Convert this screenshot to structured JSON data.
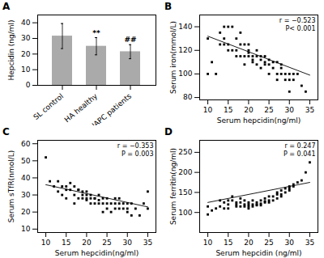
{
  "chart_data": [
    {
      "type": "bar",
      "title": "A",
      "categories": [
        "SL control",
        "HA healthy",
        "HAPC patients"
      ],
      "values": [
        31.5,
        25.0,
        21.5
      ],
      "errors": [
        8.0,
        5.5,
        4.5
      ],
      "color": "#aaaaaa",
      "ylabel": "Hepcidin (ng/ml)",
      "ylim": [
        0,
        45
      ],
      "yticks": [
        0,
        10,
        20,
        30,
        40
      ],
      "annotations": [
        null,
        "**",
        "##"
      ],
      "grid": false
    },
    {
      "type": "scatter",
      "title": "B",
      "xlabel": "Serum hepcidin(ng/ml)",
      "ylabel": "Serum iron(mmol/L)",
      "xlim": [
        8,
        37
      ],
      "ylim": [
        78,
        150
      ],
      "xticks": [
        10,
        15,
        20,
        25,
        30,
        35
      ],
      "yticks": [
        80,
        100,
        120,
        140
      ],
      "annotations": [
        "r = −0.523",
        "P< 0.001"
      ],
      "color": "#000000",
      "marker": "square",
      "fit": {
        "type": "line",
        "x": [
          10,
          35
        ],
        "values": [
          132,
          99
        ],
        "color": "#000000"
      },
      "x": [
        10,
        10,
        11,
        12,
        13,
        13,
        14,
        14,
        14,
        15,
        15,
        15,
        16,
        16,
        17,
        17,
        17,
        18,
        18,
        18,
        19,
        19,
        19,
        20,
        20,
        20,
        20,
        21,
        21,
        21,
        22,
        22,
        22,
        23,
        23,
        23,
        24,
        24,
        24,
        25,
        25,
        25,
        26,
        26,
        27,
        27,
        27,
        28,
        28,
        28,
        29,
        29,
        30,
        30,
        30,
        31,
        31,
        32,
        33,
        34
      ],
      "values": [
        130,
        100,
        110,
        100,
        135,
        125,
        140,
        130,
        125,
        125,
        120,
        140,
        140,
        120,
        130,
        120,
        115,
        135,
        125,
        115,
        125,
        115,
        108,
        115,
        118,
        125,
        120,
        115,
        110,
        112,
        115,
        108,
        120,
        112,
        115,
        105,
        108,
        115,
        110,
        112,
        108,
        100,
        110,
        105,
        110,
        100,
        95,
        105,
        108,
        100,
        95,
        100,
        100,
        95,
        85,
        100,
        95,
        100,
        90,
        85
      ],
      "grid": false
    },
    {
      "type": "scatter",
      "title": "C",
      "xlabel": "Serum hepcidin(ng/ml)",
      "ylabel": "Serum sTfR(nmol/L)",
      "xlim": [
        8,
        37
      ],
      "ylim": [
        8,
        62
      ],
      "xticks": [
        10,
        15,
        20,
        25,
        30,
        35
      ],
      "yticks": [
        10,
        20,
        30,
        40,
        50,
        60
      ],
      "annotations": [
        "r = −0.353",
        "P = 0.003"
      ],
      "color": "#000000",
      "marker": "square",
      "fit": {
        "type": "line",
        "x": [
          10,
          35
        ],
        "values": [
          36,
          23
        ],
        "color": "#000000"
      },
      "x": [
        10,
        11,
        12,
        13,
        13,
        14,
        14,
        15,
        15,
        15,
        16,
        16,
        17,
        17,
        17,
        18,
        18,
        18,
        19,
        19,
        19,
        20,
        20,
        20,
        20,
        21,
        21,
        21,
        22,
        22,
        22,
        23,
        23,
        23,
        24,
        24,
        24,
        25,
        25,
        25,
        26,
        26,
        27,
        27,
        27,
        28,
        28,
        28,
        29,
        29,
        30,
        30,
        30,
        31,
        31,
        32,
        33,
        34,
        35,
        35
      ],
      "values": [
        52,
        38,
        35,
        38,
        32,
        35,
        30,
        33,
        35,
        28,
        37,
        33,
        35,
        30,
        25,
        33,
        28,
        33,
        30,
        28,
        32,
        28,
        32,
        27,
        30,
        28,
        25,
        30,
        28,
        25,
        28,
        25,
        30,
        27,
        28,
        25,
        20,
        25,
        28,
        22,
        25,
        20,
        25,
        22,
        28,
        25,
        22,
        28,
        22,
        25,
        22,
        25,
        20,
        18,
        25,
        22,
        18,
        25,
        32,
        22
      ],
      "grid": false
    },
    {
      "type": "scatter",
      "title": "D",
      "xlabel": "Serum hepcidin (ng/ml)",
      "ylabel": "Serum ferritin(ng/ml)",
      "xlim": [
        8,
        37
      ],
      "ylim": [
        50,
        280
      ],
      "xticks": [
        10,
        15,
        20,
        25,
        30,
        35
      ],
      "yticks": [
        100,
        150,
        200,
        250
      ],
      "annotations": [
        "r = 0.247",
        "P = 0.041"
      ],
      "color": "#000000",
      "marker": "square",
      "fit": {
        "type": "line",
        "x": [
          10,
          35
        ],
        "values": [
          125,
          175
        ],
        "color": "#000000"
      },
      "x": [
        10,
        10,
        11,
        12,
        13,
        13,
        14,
        14,
        15,
        15,
        15,
        16,
        16,
        17,
        17,
        17,
        18,
        18,
        18,
        19,
        19,
        19,
        20,
        20,
        20,
        20,
        21,
        21,
        21,
        22,
        22,
        22,
        23,
        23,
        23,
        24,
        24,
        24,
        25,
        25,
        25,
        26,
        26,
        27,
        27,
        27,
        28,
        28,
        28,
        29,
        29,
        30,
        30,
        30,
        31,
        31,
        32,
        33,
        34,
        35
      ],
      "values": [
        115,
        95,
        105,
        110,
        130,
        115,
        125,
        110,
        120,
        130,
        110,
        140,
        130,
        125,
        115,
        120,
        135,
        125,
        115,
        130,
        120,
        115,
        125,
        115,
        120,
        110,
        130,
        120,
        115,
        125,
        118,
        120,
        130,
        122,
        118,
        128,
        125,
        135,
        130,
        125,
        140,
        130,
        140,
        145,
        135,
        150,
        140,
        155,
        145,
        150,
        160,
        155,
        165,
        160,
        170,
        165,
        175,
        180,
        200,
        225
      ],
      "grid": false
    }
  ]
}
